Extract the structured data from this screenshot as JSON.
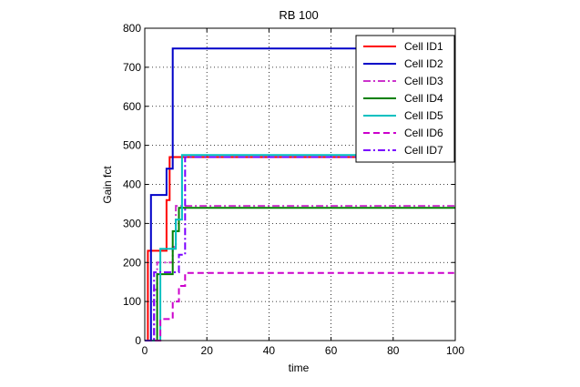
{
  "chart_data": {
    "type": "line",
    "title": "RB 100",
    "xlabel": "time",
    "ylabel": "Gain fct",
    "xlim": [
      0,
      100
    ],
    "ylim": [
      0,
      800
    ],
    "xticks": [
      0,
      20,
      40,
      60,
      80,
      100
    ],
    "yticks": [
      0,
      100,
      200,
      300,
      400,
      500,
      600,
      700,
      800
    ],
    "grid": true,
    "legend_position": "top-right",
    "series": [
      {
        "name": "Cell ID1",
        "color": "#ff0000",
        "dash": "solid",
        "x": [
          0,
          1,
          1,
          7,
          7,
          8,
          8,
          100
        ],
        "y": [
          0,
          0,
          230,
          230,
          360,
          360,
          470,
          470
        ]
      },
      {
        "name": "Cell ID2",
        "color": "#0000c8",
        "dash": "solid",
        "x": [
          0,
          2,
          2,
          7,
          7,
          9,
          9,
          100
        ],
        "y": [
          0,
          0,
          373,
          373,
          440,
          440,
          748,
          748
        ]
      },
      {
        "name": "Cell ID3",
        "color": "#cc33cc",
        "dash": "dashdot",
        "x": [
          0,
          3,
          3,
          4,
          4,
          9,
          9,
          10,
          10,
          100
        ],
        "y": [
          0,
          0,
          130,
          130,
          200,
          200,
          240,
          240,
          345,
          345
        ]
      },
      {
        "name": "Cell ID4",
        "color": "#008000",
        "dash": "solid",
        "x": [
          0,
          4,
          4,
          9,
          9,
          11,
          11,
          100
        ],
        "y": [
          0,
          0,
          170,
          170,
          280,
          280,
          340,
          340
        ]
      },
      {
        "name": "Cell ID5",
        "color": "#00c0c0",
        "dash": "solid",
        "x": [
          0,
          5,
          5,
          10,
          10,
          12,
          12,
          100
        ],
        "y": [
          0,
          0,
          235,
          235,
          310,
          310,
          475,
          475
        ]
      },
      {
        "name": "Cell ID6",
        "color": "#cc00cc",
        "dash": "dashed",
        "x": [
          0,
          5,
          5,
          9,
          9,
          11,
          11,
          13,
          13,
          100
        ],
        "y": [
          0,
          0,
          55,
          55,
          100,
          100,
          140,
          140,
          173,
          173
        ]
      },
      {
        "name": "Cell ID7",
        "color": "#7a00ff",
        "dash": "dashdot",
        "x": [
          0,
          3,
          3,
          11,
          11,
          13,
          13,
          100
        ],
        "y": [
          0,
          0,
          175,
          175,
          220,
          220,
          470,
          470
        ]
      }
    ]
  }
}
